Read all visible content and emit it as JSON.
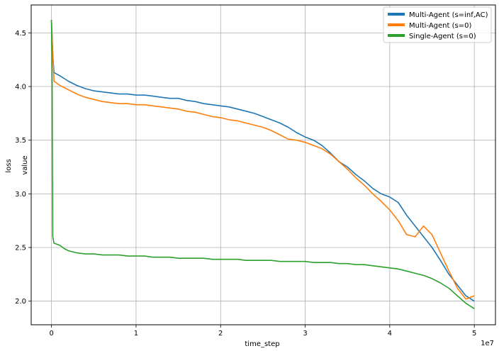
{
  "chart_data": {
    "type": "line",
    "xlabel": "time_step",
    "ylabels": [
      "loss",
      "value"
    ],
    "x_multiplier_label": "1e7",
    "xlim": [
      -2400000,
      52500000
    ],
    "ylim": [
      1.78,
      4.76
    ],
    "x_ticks": [
      0,
      10000000,
      20000000,
      30000000,
      40000000,
      50000000
    ],
    "x_tick_labels": [
      "0",
      "1",
      "2",
      "3",
      "4",
      "5"
    ],
    "y_ticks": [
      2.0,
      2.5,
      3.0,
      3.5,
      4.0,
      4.5
    ],
    "y_tick_labels": [
      "2.0",
      "2.5",
      "3.0",
      "3.5",
      "4.0",
      "4.5"
    ],
    "grid": true,
    "legend_position": "top-right",
    "series": [
      {
        "name": "Multi-Agent (s=inf,AC)",
        "color": "#1f77b4",
        "points": [
          [
            0,
            4.62
          ],
          [
            150000,
            4.3
          ],
          [
            300000,
            4.13
          ],
          [
            1000000,
            4.1
          ],
          [
            2000000,
            4.05
          ],
          [
            3000000,
            4.01
          ],
          [
            4000000,
            3.98
          ],
          [
            5000000,
            3.96
          ],
          [
            6000000,
            3.95
          ],
          [
            7000000,
            3.94
          ],
          [
            8000000,
            3.93
          ],
          [
            9000000,
            3.93
          ],
          [
            10000000,
            3.92
          ],
          [
            11000000,
            3.92
          ],
          [
            12000000,
            3.91
          ],
          [
            13000000,
            3.9
          ],
          [
            14000000,
            3.89
          ],
          [
            15000000,
            3.89
          ],
          [
            16000000,
            3.87
          ],
          [
            17000000,
            3.86
          ],
          [
            18000000,
            3.84
          ],
          [
            19000000,
            3.83
          ],
          [
            20000000,
            3.82
          ],
          [
            21000000,
            3.81
          ],
          [
            22000000,
            3.79
          ],
          [
            23000000,
            3.77
          ],
          [
            24000000,
            3.75
          ],
          [
            25000000,
            3.72
          ],
          [
            26000000,
            3.69
          ],
          [
            27000000,
            3.66
          ],
          [
            28000000,
            3.62
          ],
          [
            29000000,
            3.57
          ],
          [
            30000000,
            3.53
          ],
          [
            31000000,
            3.5
          ],
          [
            32000000,
            3.45
          ],
          [
            33000000,
            3.38
          ],
          [
            34000000,
            3.3
          ],
          [
            35000000,
            3.25
          ],
          [
            36000000,
            3.18
          ],
          [
            37000000,
            3.12
          ],
          [
            38000000,
            3.05
          ],
          [
            39000000,
            3.0
          ],
          [
            40000000,
            2.97
          ],
          [
            41000000,
            2.92
          ],
          [
            42000000,
            2.8
          ],
          [
            43000000,
            2.7
          ],
          [
            44000000,
            2.6
          ],
          [
            45000000,
            2.5
          ],
          [
            46000000,
            2.38
          ],
          [
            47000000,
            2.25
          ],
          [
            48000000,
            2.15
          ],
          [
            49000000,
            2.05
          ],
          [
            50000000,
            2.0
          ]
        ]
      },
      {
        "name": "Multi-Agent (s=0)",
        "color": "#ff7f0e",
        "points": [
          [
            0,
            4.62
          ],
          [
            150000,
            4.3
          ],
          [
            300000,
            4.05
          ],
          [
            1000000,
            4.01
          ],
          [
            2000000,
            3.97
          ],
          [
            3000000,
            3.93
          ],
          [
            4000000,
            3.9
          ],
          [
            5000000,
            3.88
          ],
          [
            6000000,
            3.86
          ],
          [
            7000000,
            3.85
          ],
          [
            8000000,
            3.84
          ],
          [
            9000000,
            3.84
          ],
          [
            10000000,
            3.83
          ],
          [
            11000000,
            3.83
          ],
          [
            12000000,
            3.82
          ],
          [
            13000000,
            3.81
          ],
          [
            14000000,
            3.8
          ],
          [
            15000000,
            3.79
          ],
          [
            16000000,
            3.77
          ],
          [
            17000000,
            3.76
          ],
          [
            18000000,
            3.74
          ],
          [
            19000000,
            3.72
          ],
          [
            20000000,
            3.71
          ],
          [
            21000000,
            3.69
          ],
          [
            22000000,
            3.68
          ],
          [
            23000000,
            3.66
          ],
          [
            24000000,
            3.64
          ],
          [
            25000000,
            3.62
          ],
          [
            26000000,
            3.59
          ],
          [
            27000000,
            3.55
          ],
          [
            28000000,
            3.51
          ],
          [
            29000000,
            3.5
          ],
          [
            30000000,
            3.48
          ],
          [
            31000000,
            3.45
          ],
          [
            32000000,
            3.42
          ],
          [
            33000000,
            3.37
          ],
          [
            34000000,
            3.3
          ],
          [
            35000000,
            3.23
          ],
          [
            36000000,
            3.15
          ],
          [
            37000000,
            3.08
          ],
          [
            38000000,
            3.0
          ],
          [
            39000000,
            2.93
          ],
          [
            40000000,
            2.85
          ],
          [
            41000000,
            2.75
          ],
          [
            42000000,
            2.62
          ],
          [
            43000000,
            2.6
          ],
          [
            44000000,
            2.7
          ],
          [
            45000000,
            2.62
          ],
          [
            46000000,
            2.45
          ],
          [
            47000000,
            2.28
          ],
          [
            48000000,
            2.12
          ],
          [
            49000000,
            2.02
          ],
          [
            50000000,
            2.05
          ]
        ]
      },
      {
        "name": "Single-Agent (s=0)",
        "color": "#2ca02c",
        "points": [
          [
            0,
            4.62
          ],
          [
            80000,
            4.0
          ],
          [
            150000,
            2.6
          ],
          [
            300000,
            2.54
          ],
          [
            1000000,
            2.52
          ],
          [
            1500000,
            2.49
          ],
          [
            2000000,
            2.47
          ],
          [
            3000000,
            2.45
          ],
          [
            4000000,
            2.44
          ],
          [
            5000000,
            2.44
          ],
          [
            6000000,
            2.43
          ],
          [
            7000000,
            2.43
          ],
          [
            8000000,
            2.43
          ],
          [
            9000000,
            2.42
          ],
          [
            10000000,
            2.42
          ],
          [
            11000000,
            2.42
          ],
          [
            12000000,
            2.41
          ],
          [
            13000000,
            2.41
          ],
          [
            14000000,
            2.41
          ],
          [
            15000000,
            2.4
          ],
          [
            16000000,
            2.4
          ],
          [
            17000000,
            2.4
          ],
          [
            18000000,
            2.4
          ],
          [
            19000000,
            2.39
          ],
          [
            20000000,
            2.39
          ],
          [
            21000000,
            2.39
          ],
          [
            22000000,
            2.39
          ],
          [
            23000000,
            2.38
          ],
          [
            24000000,
            2.38
          ],
          [
            25000000,
            2.38
          ],
          [
            26000000,
            2.38
          ],
          [
            27000000,
            2.37
          ],
          [
            28000000,
            2.37
          ],
          [
            29000000,
            2.37
          ],
          [
            30000000,
            2.37
          ],
          [
            31000000,
            2.36
          ],
          [
            32000000,
            2.36
          ],
          [
            33000000,
            2.36
          ],
          [
            34000000,
            2.35
          ],
          [
            35000000,
            2.35
          ],
          [
            36000000,
            2.34
          ],
          [
            37000000,
            2.34
          ],
          [
            38000000,
            2.33
          ],
          [
            39000000,
            2.32
          ],
          [
            40000000,
            2.31
          ],
          [
            41000000,
            2.3
          ],
          [
            42000000,
            2.28
          ],
          [
            43000000,
            2.26
          ],
          [
            44000000,
            2.24
          ],
          [
            45000000,
            2.21
          ],
          [
            46000000,
            2.17
          ],
          [
            47000000,
            2.12
          ],
          [
            48000000,
            2.05
          ],
          [
            49000000,
            1.98
          ],
          [
            50000000,
            1.93
          ]
        ]
      }
    ]
  }
}
